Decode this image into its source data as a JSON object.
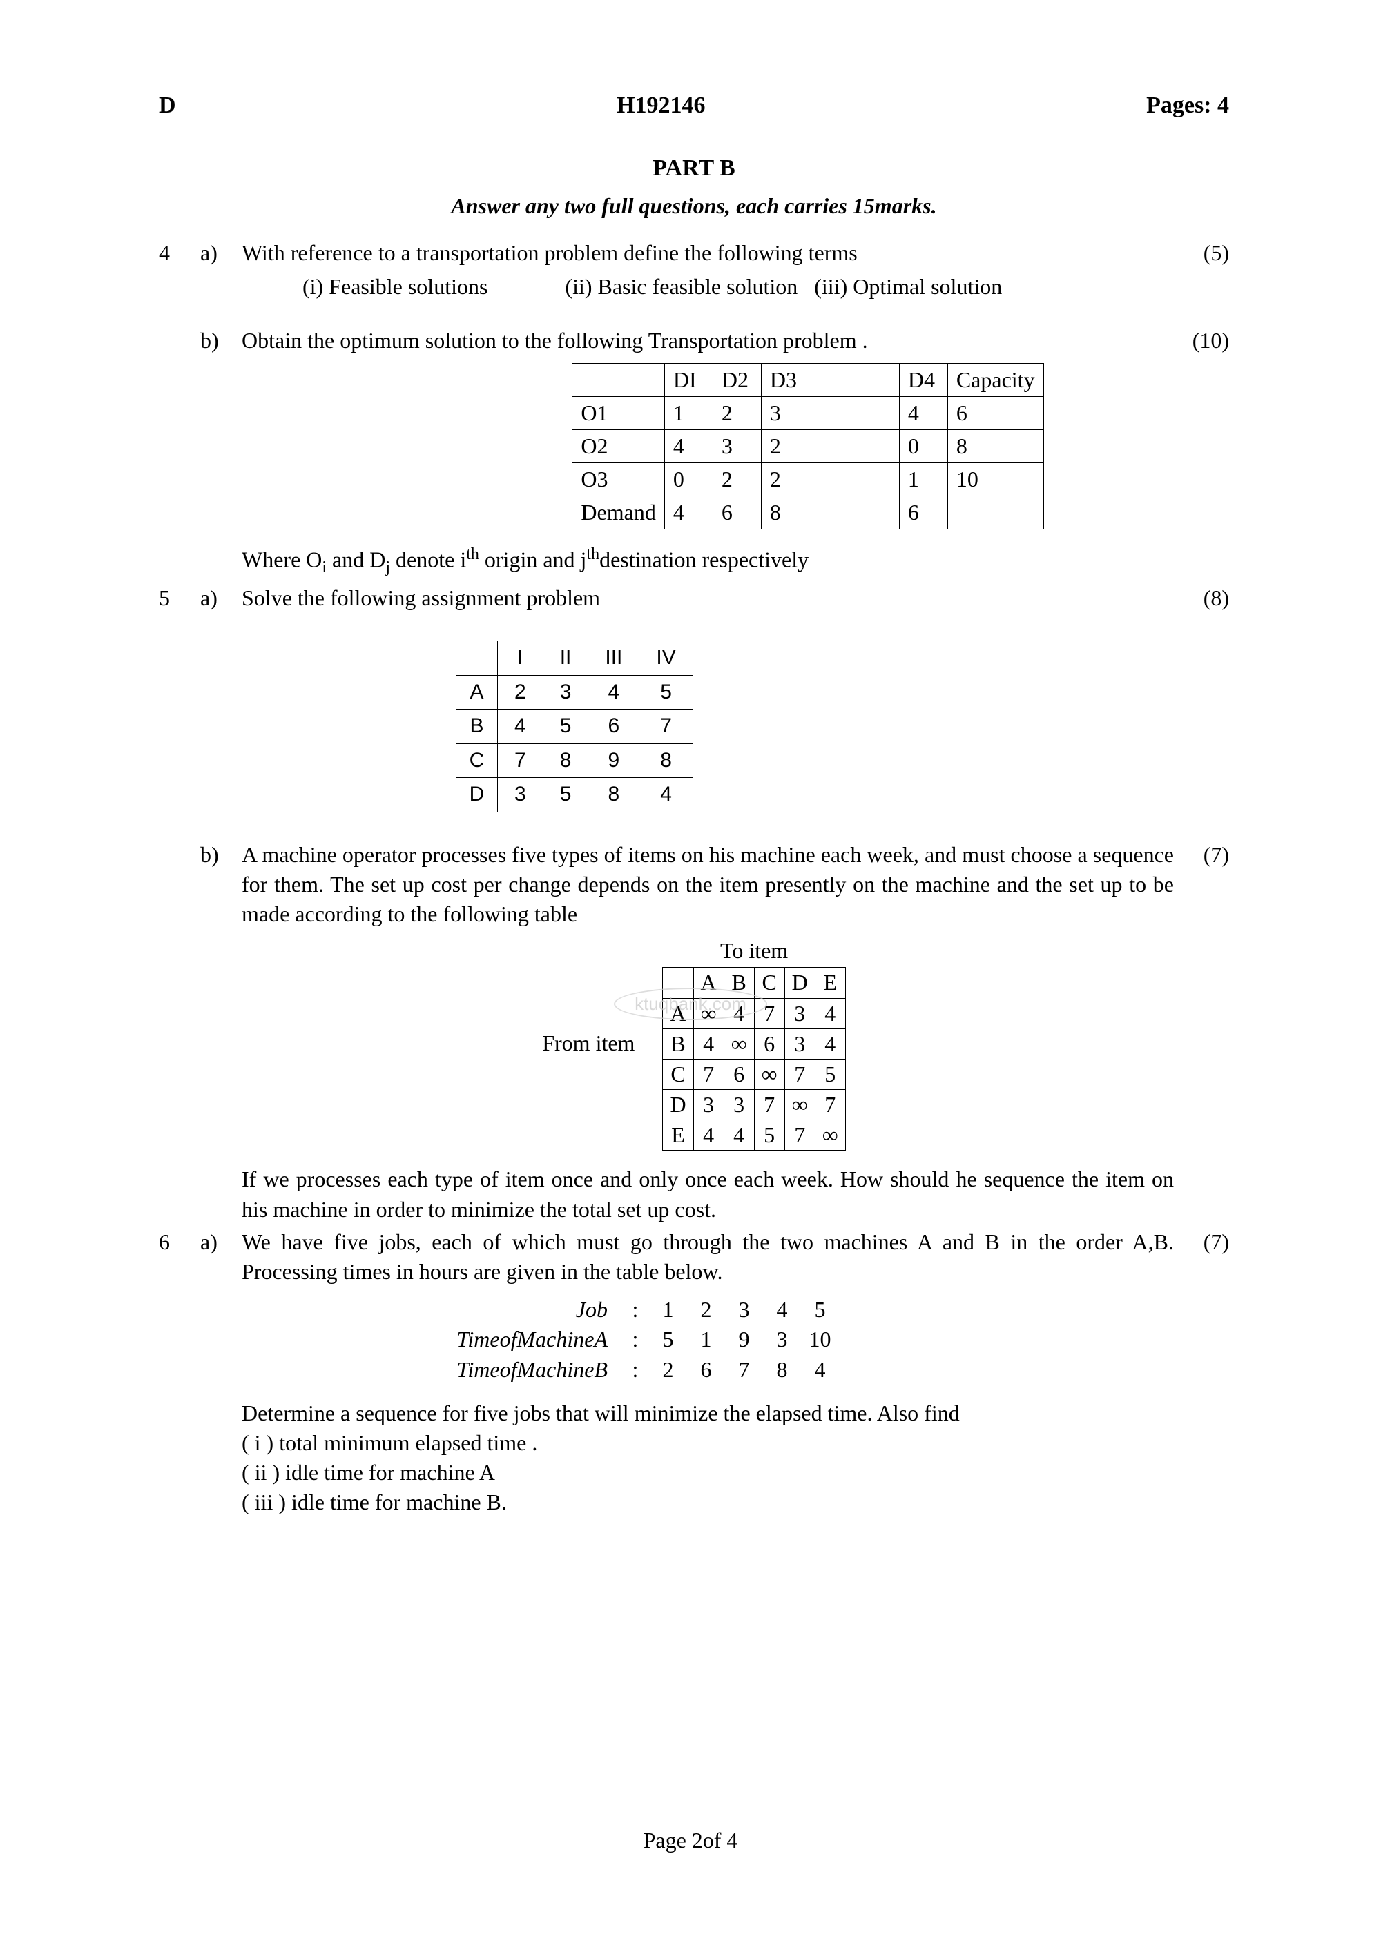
{
  "header": {
    "left": "D",
    "center": "H192146",
    "right": "Pages: 4"
  },
  "part_title": "PART B",
  "instruction": "Answer any two full questions, each carries 15marks.",
  "q4a": {
    "num": "4",
    "sub": "a)",
    "text": "With reference to a transportation problem define the following terms",
    "marks": "(5)",
    "terms": " (i) Feasible solutions              (ii) Basic feasible solution   (iii) Optimal solution"
  },
  "q4b": {
    "sub": "b)",
    "text": "Obtain the optimum  solution to the following Transportation problem .",
    "marks": "(10)",
    "table": {
      "header": [
        "",
        "DI",
        "D2",
        "D3",
        "D4",
        "Capacity"
      ],
      "rows": [
        [
          "O1",
          "1",
          "2",
          "3",
          "4",
          "6"
        ],
        [
          "O2",
          "4",
          "3",
          "2",
          "0",
          "8"
        ],
        [
          "O3",
          "0",
          "2",
          "2",
          "1",
          "10"
        ],
        [
          "Demand",
          "4",
          "6",
          "8",
          "6",
          ""
        ]
      ]
    },
    "note_html": "Where O<sub>i</sub> and D<sub>j</sub> denote i<sup>th</sup> origin and j<sup>th</sup>destination respectively"
  },
  "q5a": {
    "num": "5",
    "sub": "a)",
    "text": "Solve the following assignment problem",
    "marks": "(8)",
    "table": {
      "header": [
        "",
        "I",
        "II",
        "III",
        "IV"
      ],
      "rows": [
        [
          "A",
          "2",
          "3",
          "4",
          "5"
        ],
        [
          "B",
          "4",
          "5",
          "6",
          "7"
        ],
        [
          "C",
          "7",
          "8",
          "9",
          "8"
        ],
        [
          "D",
          "3",
          "5",
          "8",
          "4"
        ]
      ]
    }
  },
  "q5b": {
    "sub": "b)",
    "text": "A machine operator processes five types of items on his machine each week, and must choose a sequence for them. The set up cost per change depends on the item presently on the machine and the set up to be made according to the following table",
    "marks": "(7)",
    "from_label": "From  item",
    "to_label": "To item",
    "table": {
      "header": [
        "",
        "A",
        "B",
        "C",
        "D",
        "E"
      ],
      "rows": [
        [
          "A",
          "∞",
          "4",
          "7",
          "3",
          "4"
        ],
        [
          "B",
          "4",
          "∞",
          "6",
          "3",
          "4"
        ],
        [
          "C",
          "7",
          "6",
          "∞",
          "7",
          "5"
        ],
        [
          "D",
          "3",
          "3",
          "7",
          "∞",
          "7"
        ],
        [
          "E",
          "4",
          "4",
          "5",
          "7",
          "∞"
        ]
      ]
    },
    "after_text": "If we processes each type of item once and only once each week. How should he sequence the item on his machine in order to minimize the total set up cost."
  },
  "q6a": {
    "num": "6",
    "sub": "a)",
    "text": "We have five jobs, each of which must go through the two machines A and B in the order A,B. Processing times in hours are given in the table below.",
    "marks": "(7)",
    "table": {
      "labels": [
        "Job",
        "TimeofMachineA",
        "TimeofMachineB"
      ],
      "jobs": [
        "1",
        "2",
        "3",
        "4",
        "5"
      ],
      "timeA": [
        "5",
        "1",
        "9",
        "3",
        "10"
      ],
      "timeB": [
        "2",
        "6",
        "7",
        "8",
        "4"
      ]
    },
    "after1": "Determine a sequence for five jobs that will minimize the elapsed time. Also find",
    "after2": "( i ) total minimum elapsed time .",
    "after3": "( ii ) idle time for machine A",
    "after4": "( iii ) idle time for machine B."
  },
  "watermark": "ktuqbank.com",
  "footer": "Page 2of 4"
}
